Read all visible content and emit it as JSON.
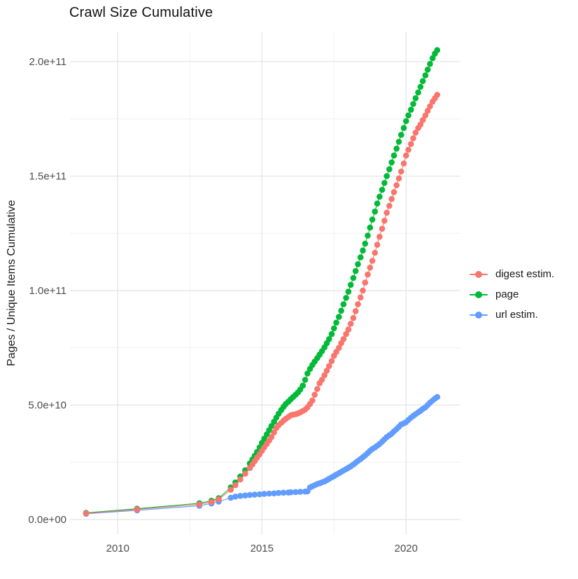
{
  "page": {
    "background": "#ffffff"
  },
  "chart": {
    "title": "Crawl Size Cumulative",
    "y_axis": {
      "title": "Pages / Unique Items Cumulative",
      "tick_labels": [
        "0.0e+00",
        "5.0e+10",
        "1.0e+11",
        "1.5e+11",
        "2.0e+11"
      ],
      "tick_values": [
        0,
        50000000000.0,
        100000000000.0,
        150000000000.0,
        200000000000.0
      ],
      "minor_values": [
        25000000000.0,
        75000000000.0,
        125000000000.0,
        175000000000.0
      ]
    },
    "x_axis": {
      "tick_labels": [
        "2010",
        "2015",
        "2020"
      ],
      "tick_values": [
        2010,
        2015,
        2020
      ],
      "minor_values": [
        2012.5,
        2017.5
      ]
    },
    "legend": {
      "items": [
        {
          "label": "digest estim.",
          "color": "#F8766D"
        },
        {
          "label": "page",
          "color": "#00BA38"
        },
        {
          "label": "url estim.",
          "color": "#619CFF"
        }
      ]
    },
    "grid_major_color": "#E4E4E4",
    "grid_minor_color": "#EFEFEF"
  },
  "chart_data": {
    "type": "scatter",
    "title": "Crawl Size Cumulative",
    "xlabel": "",
    "ylabel": "Pages / Unique Items Cumulative",
    "xlim": [
      2008.3,
      2021.7
    ],
    "ylim": [
      0,
      210000000000.0
    ],
    "grid": "on",
    "legend_position": "right",
    "x_unit": "decimal year",
    "y_unit": "items cumulative; point y values below are in billions (multiply by 1e9)",
    "series": [
      {
        "name": "digest estim.",
        "color": "#F8766D",
        "points": [
          [
            2008.9,
            2.7
          ],
          [
            2010.67,
            4.4
          ],
          [
            2012.83,
            6.6
          ],
          [
            2013.25,
            7.7
          ],
          [
            2013.5,
            8.8
          ],
          [
            2013.92,
            13.0
          ],
          [
            2014.08,
            15.0
          ],
          [
            2014.25,
            17.5
          ],
          [
            2014.42,
            20.0
          ],
          [
            2014.58,
            22.5
          ],
          [
            2014.67,
            24.0
          ],
          [
            2014.75,
            25.5
          ],
          [
            2014.83,
            27.0
          ],
          [
            2014.92,
            28.5
          ],
          [
            2015.0,
            30.0
          ],
          [
            2015.08,
            31.5
          ],
          [
            2015.17,
            33.0
          ],
          [
            2015.25,
            34.5
          ],
          [
            2015.33,
            36.0
          ],
          [
            2015.42,
            38.0
          ],
          [
            2015.5,
            40.0
          ],
          [
            2015.58,
            41.2
          ],
          [
            2015.67,
            42.2
          ],
          [
            2015.75,
            43.2
          ],
          [
            2015.83,
            44.0
          ],
          [
            2015.92,
            44.8
          ],
          [
            2016.0,
            45.5
          ],
          [
            2016.08,
            45.8
          ],
          [
            2016.17,
            46.0
          ],
          [
            2016.25,
            46.3
          ],
          [
            2016.33,
            46.8
          ],
          [
            2016.42,
            47.4
          ],
          [
            2016.5,
            48.0
          ],
          [
            2016.58,
            49.0
          ],
          [
            2016.67,
            50.5
          ],
          [
            2016.75,
            52.0
          ],
          [
            2016.83,
            54.5
          ],
          [
            2016.92,
            57.0
          ],
          [
            2017.0,
            59.5
          ],
          [
            2017.08,
            61.0
          ],
          [
            2017.17,
            63.0
          ],
          [
            2017.25,
            65.0
          ],
          [
            2017.33,
            67.0
          ],
          [
            2017.42,
            69.2
          ],
          [
            2017.5,
            71.5
          ],
          [
            2017.58,
            73.2
          ],
          [
            2017.67,
            75.0
          ],
          [
            2017.75,
            77.0
          ],
          [
            2017.83,
            78.8
          ],
          [
            2017.92,
            81.0
          ],
          [
            2018.0,
            83.0
          ],
          [
            2018.08,
            85.5
          ],
          [
            2018.17,
            88.0
          ],
          [
            2018.25,
            91.0
          ],
          [
            2018.33,
            94.0
          ],
          [
            2018.42,
            97.0
          ],
          [
            2018.5,
            100.0
          ],
          [
            2018.58,
            103.5
          ],
          [
            2018.67,
            107.0
          ],
          [
            2018.75,
            110.0
          ],
          [
            2018.83,
            113.0
          ],
          [
            2018.92,
            116.5
          ],
          [
            2019.0,
            120.0
          ],
          [
            2019.08,
            123.5
          ],
          [
            2019.17,
            127.0
          ],
          [
            2019.25,
            130.5
          ],
          [
            2019.33,
            134.0
          ],
          [
            2019.42,
            137.0
          ],
          [
            2019.5,
            140.0
          ],
          [
            2019.58,
            143.0
          ],
          [
            2019.67,
            146.0
          ],
          [
            2019.75,
            149.0
          ],
          [
            2019.83,
            152.0
          ],
          [
            2019.92,
            155.5
          ],
          [
            2020.0,
            159.0
          ],
          [
            2020.08,
            161.5
          ],
          [
            2020.17,
            164.0
          ],
          [
            2020.25,
            166.5
          ],
          [
            2020.33,
            169.0
          ],
          [
            2020.42,
            171.0
          ],
          [
            2020.5,
            172.5
          ],
          [
            2020.58,
            174.5
          ],
          [
            2020.67,
            176.5
          ],
          [
            2020.75,
            178.5
          ],
          [
            2020.83,
            180.5
          ],
          [
            2020.92,
            182.5
          ],
          [
            2021.0,
            184.0
          ],
          [
            2021.08,
            185.5
          ]
        ]
      },
      {
        "name": "page",
        "color": "#00BA38",
        "points": [
          [
            2008.9,
            2.9
          ],
          [
            2010.67,
            4.7
          ],
          [
            2012.83,
            7.1
          ],
          [
            2013.25,
            8.2
          ],
          [
            2013.5,
            9.3
          ],
          [
            2013.92,
            14.0
          ],
          [
            2014.08,
            16.2
          ],
          [
            2014.25,
            18.8
          ],
          [
            2014.42,
            21.5
          ],
          [
            2014.58,
            24.5
          ],
          [
            2014.67,
            26.2
          ],
          [
            2014.75,
            27.8
          ],
          [
            2014.83,
            29.5
          ],
          [
            2014.92,
            31.5
          ],
          [
            2015.0,
            33.5
          ],
          [
            2015.08,
            35.3
          ],
          [
            2015.17,
            37.2
          ],
          [
            2015.25,
            39.0
          ],
          [
            2015.33,
            40.8
          ],
          [
            2015.42,
            42.7
          ],
          [
            2015.5,
            44.5
          ],
          [
            2015.58,
            46.2
          ],
          [
            2015.67,
            47.8
          ],
          [
            2015.75,
            49.2
          ],
          [
            2015.83,
            50.5
          ],
          [
            2015.92,
            51.5
          ],
          [
            2016.0,
            52.5
          ],
          [
            2016.08,
            53.5
          ],
          [
            2016.17,
            54.5
          ],
          [
            2016.25,
            55.5
          ],
          [
            2016.33,
            56.8
          ],
          [
            2016.42,
            58.5
          ],
          [
            2016.5,
            61.0
          ],
          [
            2016.58,
            63.8
          ],
          [
            2016.67,
            65.8
          ],
          [
            2016.75,
            67.5
          ],
          [
            2016.83,
            69.0
          ],
          [
            2016.92,
            70.5
          ],
          [
            2017.0,
            72.0
          ],
          [
            2017.08,
            73.5
          ],
          [
            2017.17,
            75.2
          ],
          [
            2017.25,
            77.0
          ],
          [
            2017.33,
            78.8
          ],
          [
            2017.42,
            81.0
          ],
          [
            2017.5,
            83.5
          ],
          [
            2017.58,
            86.0
          ],
          [
            2017.67,
            88.5
          ],
          [
            2017.75,
            91.2
          ],
          [
            2017.83,
            94.0
          ],
          [
            2017.92,
            96.8
          ],
          [
            2018.0,
            99.5
          ],
          [
            2018.08,
            102.5
          ],
          [
            2018.17,
            105.5
          ],
          [
            2018.25,
            108.5
          ],
          [
            2018.33,
            111.5
          ],
          [
            2018.42,
            114.5
          ],
          [
            2018.5,
            117.5
          ],
          [
            2018.58,
            120.5
          ],
          [
            2018.67,
            124.0
          ],
          [
            2018.75,
            127.5
          ],
          [
            2018.83,
            131.0
          ],
          [
            2018.92,
            134.5
          ],
          [
            2019.0,
            138.0
          ],
          [
            2019.08,
            141.0
          ],
          [
            2019.17,
            144.0
          ],
          [
            2019.25,
            147.0
          ],
          [
            2019.33,
            150.0
          ],
          [
            2019.42,
            153.0
          ],
          [
            2019.5,
            156.0
          ],
          [
            2019.58,
            159.0
          ],
          [
            2019.67,
            162.0
          ],
          [
            2019.75,
            165.0
          ],
          [
            2019.83,
            168.0
          ],
          [
            2019.92,
            171.0
          ],
          [
            2020.0,
            174.0
          ],
          [
            2020.08,
            176.5
          ],
          [
            2020.17,
            179.0
          ],
          [
            2020.25,
            181.5
          ],
          [
            2020.33,
            184.0
          ],
          [
            2020.42,
            186.5
          ],
          [
            2020.5,
            189.0
          ],
          [
            2020.58,
            191.5
          ],
          [
            2020.67,
            194.0
          ],
          [
            2020.75,
            196.5
          ],
          [
            2020.83,
            199.0
          ],
          [
            2020.92,
            201.5
          ],
          [
            2021.0,
            203.5
          ],
          [
            2021.08,
            205.0
          ]
        ]
      },
      {
        "name": "url estim.",
        "color": "#619CFF",
        "points": [
          [
            2008.9,
            2.5
          ],
          [
            2010.67,
            4.0
          ],
          [
            2012.83,
            6.0
          ],
          [
            2013.25,
            7.0
          ],
          [
            2013.5,
            7.8
          ],
          [
            2013.92,
            9.5
          ],
          [
            2014.08,
            10.0
          ],
          [
            2014.25,
            10.3
          ],
          [
            2014.42,
            10.5
          ],
          [
            2014.58,
            10.7
          ],
          [
            2014.75,
            10.9
          ],
          [
            2014.92,
            11.0
          ],
          [
            2015.08,
            11.2
          ],
          [
            2015.25,
            11.3
          ],
          [
            2015.42,
            11.4
          ],
          [
            2015.58,
            11.6
          ],
          [
            2015.75,
            11.7
          ],
          [
            2015.92,
            11.8
          ],
          [
            2016.0,
            11.9
          ],
          [
            2016.17,
            12.0
          ],
          [
            2016.33,
            12.1
          ],
          [
            2016.5,
            12.2
          ],
          [
            2016.58,
            12.3
          ],
          [
            2016.67,
            14.0
          ],
          [
            2016.75,
            14.5
          ],
          [
            2016.83,
            15.0
          ],
          [
            2016.92,
            15.5
          ],
          [
            2017.0,
            15.8
          ],
          [
            2017.08,
            16.2
          ],
          [
            2017.17,
            16.6
          ],
          [
            2017.25,
            17.2
          ],
          [
            2017.33,
            17.8
          ],
          [
            2017.42,
            18.4
          ],
          [
            2017.5,
            19.0
          ],
          [
            2017.58,
            19.6
          ],
          [
            2017.67,
            20.2
          ],
          [
            2017.75,
            20.8
          ],
          [
            2017.83,
            21.4
          ],
          [
            2017.92,
            22.0
          ],
          [
            2018.0,
            22.6
          ],
          [
            2018.08,
            23.2
          ],
          [
            2018.17,
            24.0
          ],
          [
            2018.25,
            24.8
          ],
          [
            2018.33,
            25.6
          ],
          [
            2018.42,
            26.4
          ],
          [
            2018.5,
            27.2
          ],
          [
            2018.58,
            28.0
          ],
          [
            2018.67,
            29.0
          ],
          [
            2018.75,
            30.0
          ],
          [
            2018.83,
            30.8
          ],
          [
            2018.92,
            31.5
          ],
          [
            2019.0,
            32.2
          ],
          [
            2019.08,
            33.0
          ],
          [
            2019.17,
            34.0
          ],
          [
            2019.25,
            35.0
          ],
          [
            2019.33,
            36.0
          ],
          [
            2019.42,
            36.8
          ],
          [
            2019.5,
            37.5
          ],
          [
            2019.58,
            38.5
          ],
          [
            2019.67,
            39.5
          ],
          [
            2019.75,
            40.5
          ],
          [
            2019.83,
            41.5
          ],
          [
            2019.92,
            42.0
          ],
          [
            2020.0,
            42.5
          ],
          [
            2020.08,
            43.5
          ],
          [
            2020.17,
            44.5
          ],
          [
            2020.25,
            45.3
          ],
          [
            2020.33,
            46.0
          ],
          [
            2020.42,
            46.8
          ],
          [
            2020.5,
            47.5
          ],
          [
            2020.58,
            48.3
          ],
          [
            2020.67,
            49.0
          ],
          [
            2020.75,
            50.0
          ],
          [
            2020.83,
            51.0
          ],
          [
            2020.92,
            52.0
          ],
          [
            2021.0,
            52.8
          ],
          [
            2021.08,
            53.5
          ]
        ]
      }
    ]
  }
}
